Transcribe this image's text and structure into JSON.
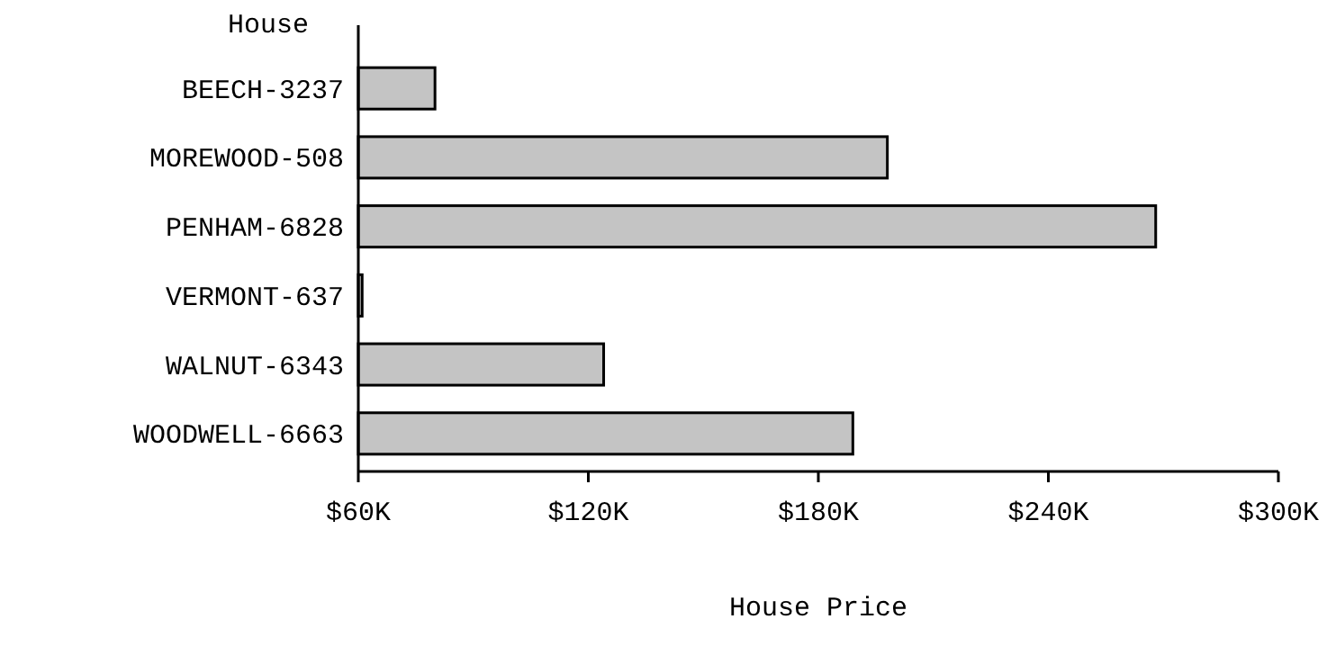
{
  "chart_data": {
    "type": "bar",
    "orientation": "horizontal",
    "xlabel": "House Price",
    "ylabel": "House",
    "categories": [
      "BEECH-3237",
      "MOREWOOD-508",
      "PENHAM-6828",
      "VERMONT-637",
      "WALNUT-6343",
      "WOODWELL-6663"
    ],
    "values": [
      80000,
      198000,
      268000,
      61000,
      124000,
      189000
    ],
    "color": "#c4c4c4",
    "xlim": [
      60000,
      300000
    ],
    "xticks": [
      {
        "value": 60000,
        "label": "$60K"
      },
      {
        "value": 120000,
        "label": "$120K"
      },
      {
        "value": 180000,
        "label": "$180K"
      },
      {
        "value": 240000,
        "label": "$240K"
      },
      {
        "value": 300000,
        "label": "$300K"
      }
    ],
    "grid": false
  }
}
